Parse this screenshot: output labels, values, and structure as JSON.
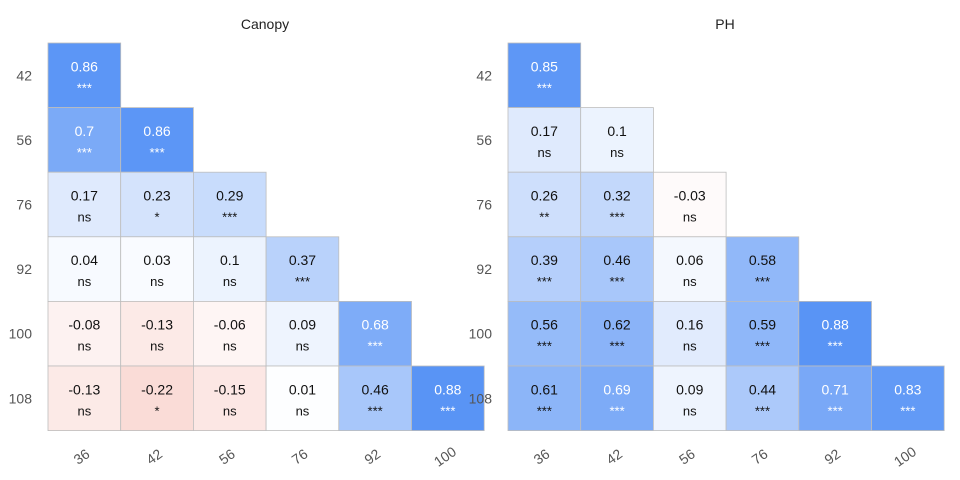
{
  "chart_data": {
    "type": "heatmap",
    "panels": [
      {
        "title": "Canopy",
        "rows": [
          "42",
          "56",
          "76",
          "92",
          "100",
          "108"
        ],
        "cols": [
          "36",
          "42",
          "56",
          "76",
          "92",
          "100"
        ],
        "values": [
          [
            0.86
          ],
          [
            0.7,
            0.86
          ],
          [
            0.17,
            0.23,
            0.29
          ],
          [
            0.04,
            0.03,
            0.1,
            0.37
          ],
          [
            -0.08,
            -0.13,
            -0.06,
            0.09,
            0.68
          ],
          [
            -0.13,
            -0.22,
            -0.15,
            0.01,
            0.46,
            0.88
          ]
        ],
        "labels": [
          [
            "0.86"
          ],
          [
            "0.7",
            "0.86"
          ],
          [
            "0.17",
            "0.23",
            "0.29"
          ],
          [
            "0.04",
            "0.03",
            "0.1",
            "0.37"
          ],
          [
            "-0.08",
            "-0.13",
            "-0.06",
            "0.09",
            "0.68"
          ],
          [
            "-0.13",
            "-0.22",
            "-0.15",
            "0.01",
            "0.46",
            "0.88"
          ]
        ],
        "significance": [
          [
            "***"
          ],
          [
            "***",
            "***"
          ],
          [
            "ns",
            "*",
            "***"
          ],
          [
            "ns",
            "ns",
            "ns",
            "***"
          ],
          [
            "ns",
            "ns",
            "ns",
            "ns",
            "***"
          ],
          [
            "ns",
            "*",
            "ns",
            "ns",
            "***",
            "***"
          ]
        ]
      },
      {
        "title": "PH",
        "rows": [
          "42",
          "56",
          "76",
          "92",
          "100",
          "108"
        ],
        "cols": [
          "36",
          "42",
          "56",
          "76",
          "92",
          "100"
        ],
        "values": [
          [
            0.85
          ],
          [
            0.17,
            0.1
          ],
          [
            0.26,
            0.32,
            -0.03
          ],
          [
            0.39,
            0.46,
            0.06,
            0.58
          ],
          [
            0.56,
            0.62,
            0.16,
            0.59,
            0.88
          ],
          [
            0.61,
            0.69,
            0.09,
            0.44,
            0.71,
            0.83
          ]
        ],
        "labels": [
          [
            "0.85"
          ],
          [
            "0.17",
            "0.1"
          ],
          [
            "0.26",
            "0.32",
            "-0.03"
          ],
          [
            "0.39",
            "0.46",
            "0.06",
            "0.58"
          ],
          [
            "0.56",
            "0.62",
            "0.16",
            "0.59",
            "0.88"
          ],
          [
            "0.61",
            "0.69",
            "0.09",
            "0.44",
            "0.71",
            "0.83"
          ]
        ],
        "significance": [
          [
            "***"
          ],
          [
            "ns",
            "ns"
          ],
          [
            "**",
            "***",
            "ns"
          ],
          [
            "***",
            "***",
            "ns",
            "***"
          ],
          [
            "***",
            "***",
            "ns",
            "***",
            "***"
          ],
          [
            "***",
            "***",
            "ns",
            "***",
            "***",
            "***"
          ]
        ]
      }
    ],
    "color_scale": {
      "negative": "#e8604a",
      "zero": "#ffffff",
      "positive": "#4285f4",
      "range": [
        -1,
        1
      ]
    },
    "grid": false,
    "legend": "none"
  }
}
